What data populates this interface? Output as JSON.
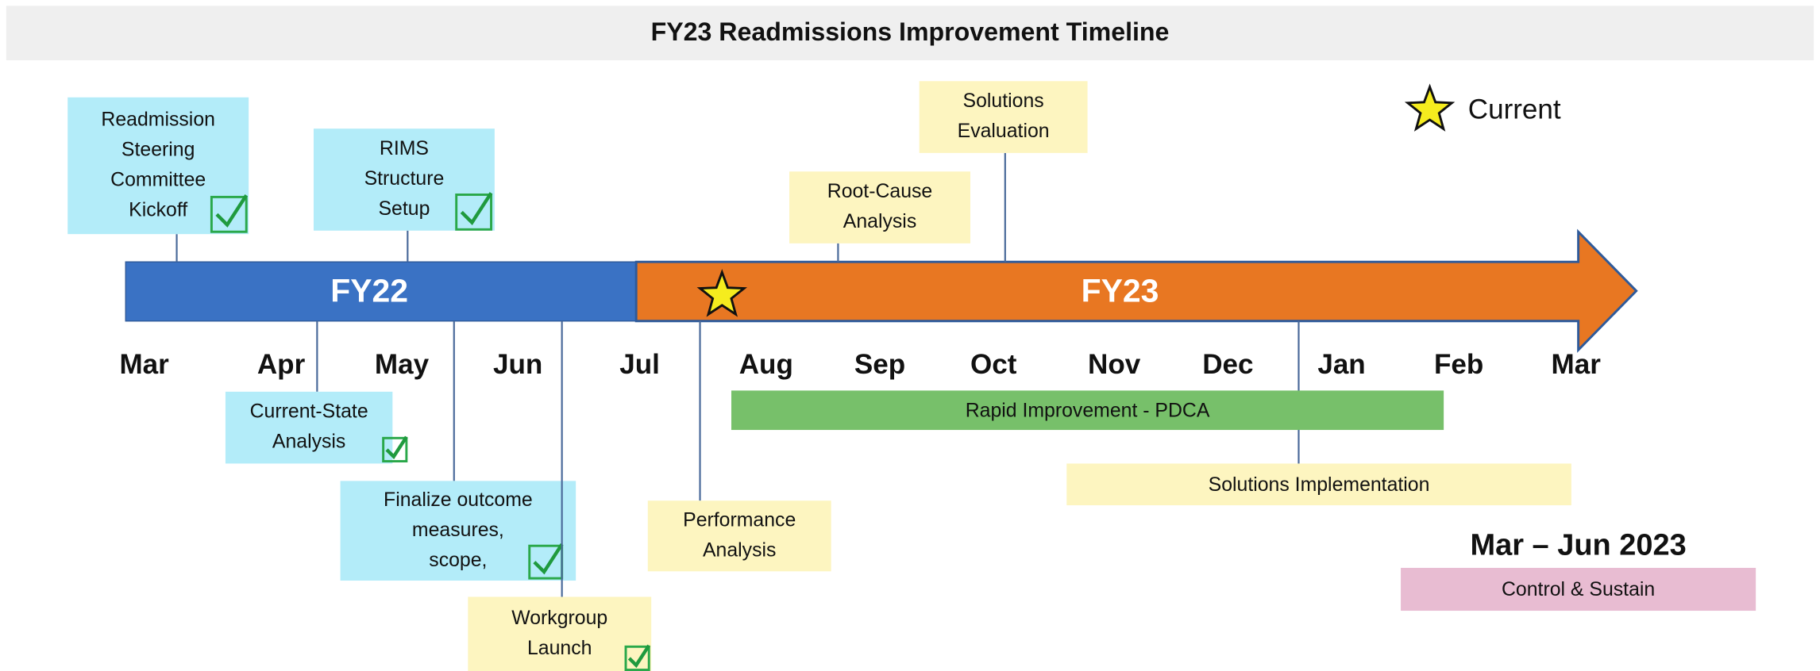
{
  "title": "FY23 Readmissions Improvement Timeline",
  "legend": {
    "label": "Current"
  },
  "fiscal_years": [
    "FY22",
    "FY23"
  ],
  "months": [
    "Mar",
    "Apr",
    "May",
    "Jun",
    "Jul",
    "Aug",
    "Sep",
    "Oct",
    "Nov",
    "Dec",
    "Jan",
    "Feb",
    "Mar"
  ],
  "milestones": [
    {
      "lines": [
        "Readmission",
        "Steering",
        "Committee",
        "Kickoff"
      ],
      "color": "#b3ecf9",
      "checked": true
    },
    {
      "lines": [
        "RIMS",
        "Structure",
        "Setup"
      ],
      "color": "#b3ecf9",
      "checked": true
    },
    {
      "lines": [
        "Root-Cause",
        "Analysis"
      ],
      "color": "#fdf5c0",
      "checked": false
    },
    {
      "lines": [
        "Solutions",
        "Evaluation"
      ],
      "color": "#fdf5c0",
      "checked": false
    },
    {
      "lines": [
        "Current-State",
        "Analysis"
      ],
      "color": "#b3ecf9",
      "checked": true
    },
    {
      "lines": [
        "Finalize outcome",
        "measures,",
        "scope,"
      ],
      "color": "#b3ecf9",
      "checked": true
    },
    {
      "lines": [
        "Workgroup",
        "Launch"
      ],
      "color": "#fdf5c0",
      "checked": true
    },
    {
      "lines": [
        "Performance",
        "Analysis"
      ],
      "color": "#fdf5c0",
      "checked": false
    }
  ],
  "phases": [
    {
      "label": "Rapid Improvement - PDCA",
      "color": "#77c06a"
    },
    {
      "label": "Solutions Implementation",
      "color": "#fdf5c0"
    },
    {
      "label": "Control & Sustain",
      "color": "#e8bcd2",
      "heading": "Mar – Jun 2023"
    }
  ]
}
